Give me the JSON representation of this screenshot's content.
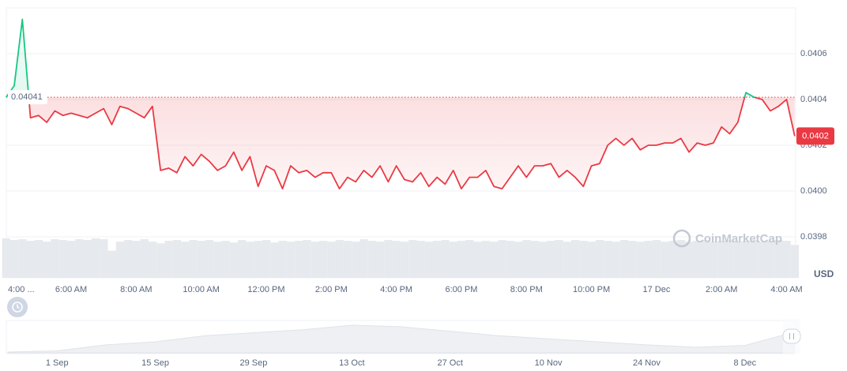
{
  "chart_data": {
    "type": "line",
    "categories": [
      "4:00 ...",
      null,
      null,
      null,
      null,
      null,
      null,
      null,
      "6:00 AM",
      null,
      null,
      null,
      null,
      null,
      null,
      null,
      "8:00 AM",
      null,
      null,
      null,
      null,
      null,
      null,
      null,
      "10:00 AM",
      null,
      null,
      null,
      null,
      null,
      null,
      null,
      "12:00 PM",
      null,
      null,
      null,
      null,
      null,
      null,
      null,
      "2:00 PM",
      null,
      null,
      null,
      null,
      null,
      null,
      null,
      "4:00 PM",
      null,
      null,
      null,
      null,
      null,
      null,
      null,
      "6:00 PM",
      null,
      null,
      null,
      null,
      null,
      null,
      null,
      "8:00 PM",
      null,
      null,
      null,
      null,
      null,
      null,
      null,
      "10:00 PM",
      null,
      null,
      null,
      null,
      null,
      null,
      null,
      "17 Dec",
      null,
      null,
      null,
      null,
      null,
      null,
      null,
      "2:00 AM",
      null,
      null,
      null,
      null,
      null,
      null,
      null,
      "4:00 AM",
      null
    ],
    "values": [
      0.04041,
      0.04046,
      0.04075,
      0.04032,
      0.04033,
      0.0403,
      0.04035,
      0.04033,
      0.04034,
      0.04033,
      0.04032,
      0.04034,
      0.04036,
      0.04029,
      0.04037,
      0.04036,
      0.04034,
      0.04032,
      0.04037,
      0.04009,
      0.0401,
      0.04008,
      0.04015,
      0.04011,
      0.04016,
      0.04013,
      0.04009,
      0.04011,
      0.04017,
      0.04009,
      0.04015,
      0.04002,
      0.04011,
      0.04009,
      0.04001,
      0.04011,
      0.04008,
      0.04009,
      0.04006,
      0.04008,
      0.04008,
      0.04001,
      0.04006,
      0.04004,
      0.04009,
      0.04006,
      0.04011,
      0.04004,
      0.04011,
      0.04005,
      0.04004,
      0.04008,
      0.04002,
      0.04006,
      0.04003,
      0.04009,
      0.04001,
      0.04006,
      0.04006,
      0.04009,
      0.04002,
      0.04001,
      0.04006,
      0.04011,
      0.04006,
      0.04011,
      0.04011,
      0.04012,
      0.04006,
      0.04009,
      0.04006,
      0.04002,
      0.04011,
      0.04012,
      0.0402,
      0.04023,
      0.0402,
      0.04023,
      0.04018,
      0.0402,
      0.0402,
      0.04021,
      0.04021,
      0.04023,
      0.04017,
      0.04021,
      0.0402,
      0.04021,
      0.04028,
      0.04025,
      0.0403,
      0.04043,
      0.04041,
      0.0404,
      0.04035,
      0.04037,
      0.0404,
      0.04024
    ],
    "colors": {
      "above": "#16c784",
      "below": "#ea3943"
    },
    "baseline": 0.04041,
    "current_price": {
      "value": 0.04024,
      "label": "0.0402"
    },
    "ylim": [
      0.0398,
      0.0408
    ],
    "yticks": [
      0.0398,
      {
        "value": 0.04,
        "label": "0.0400"
      },
      0.0402,
      0.0404,
      0.0406
    ],
    "y_unit": "USD",
    "grid": true,
    "watermark": "CoinMarketCap",
    "volume": {
      "color": "#e6e9ed",
      "values": [
        48,
        46,
        47,
        45,
        46,
        44,
        47,
        46,
        45,
        47,
        46,
        48,
        47,
        33,
        44,
        46,
        45,
        47,
        44,
        42,
        45,
        46,
        44,
        46,
        45,
        46,
        44,
        45,
        43,
        46,
        44,
        45,
        46,
        43,
        45,
        44,
        45,
        46,
        44,
        45,
        44,
        46,
        45,
        44,
        47,
        45,
        44,
        46,
        45,
        44,
        46,
        45,
        44,
        45,
        46,
        44,
        45,
        46,
        44,
        45,
        44,
        46,
        45,
        44,
        46,
        45,
        44,
        45,
        46,
        44,
        46,
        45,
        44,
        46,
        45,
        44,
        46,
        45,
        44,
        45,
        46,
        44,
        45,
        46,
        44,
        45,
        46,
        44,
        45,
        46,
        44,
        45,
        46,
        44,
        45,
        46,
        45,
        40
      ]
    },
    "navigator": {
      "type": "area",
      "categories": [
        null,
        "1 Sep",
        null,
        "15 Sep",
        null,
        "29 Sep",
        null,
        "13 Oct",
        null,
        "27 Oct",
        null,
        "10 Nov",
        null,
        "24 Nov",
        null,
        "8 Dec",
        null
      ],
      "values": [
        0.0336,
        0.034,
        0.036,
        0.037,
        0.039,
        0.04,
        0.041,
        0.0425,
        0.042,
        0.0405,
        0.039,
        0.038,
        0.037,
        0.036,
        0.0352,
        0.0358,
        0.0402
      ]
    }
  }
}
